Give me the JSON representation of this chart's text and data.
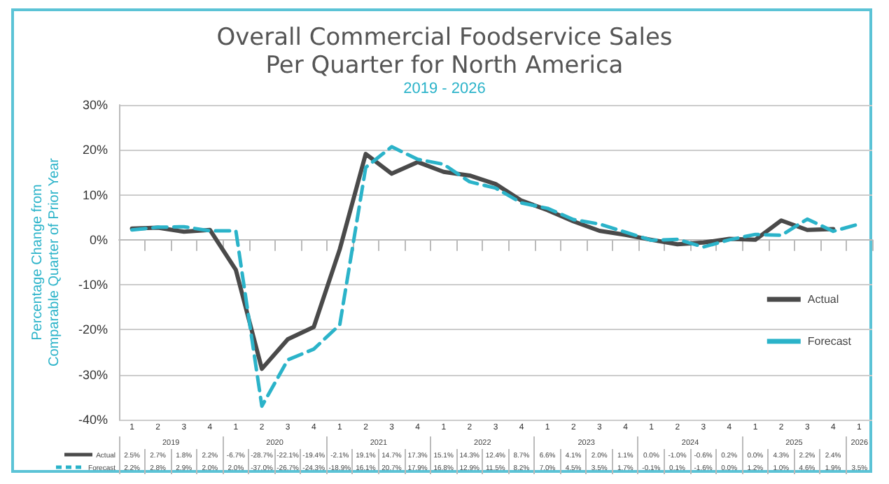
{
  "chart_data": {
    "type": "line",
    "title": "Overall Commercial Foodservice Sales\nPer Quarter for North America",
    "subtitle": "2019 - 2026",
    "ylabel": "Percentage Change from\nComparable Quarter of Prior Year",
    "categories": [
      "1",
      "2",
      "3",
      "4",
      "1",
      "2",
      "3",
      "4",
      "1",
      "2",
      "3",
      "4",
      "1",
      "2",
      "3",
      "4",
      "1",
      "2",
      "3",
      "4",
      "1",
      "2",
      "3",
      "4",
      "1",
      "2",
      "3",
      "4",
      "1"
    ],
    "annotations": [
      "2019",
      "2020",
      "2021",
      "2022",
      "2023",
      "2024",
      "2025",
      "2026"
    ],
    "series": [
      {
        "name": "Actual",
        "color": "#4a4a4a",
        "line_style": "solid",
        "values": [
          2.5,
          2.7,
          1.8,
          2.2,
          -6.7,
          -28.7,
          -22.1,
          -19.4,
          -2.1,
          19.1,
          14.7,
          17.3,
          15.1,
          14.3,
          12.4,
          8.7,
          6.6,
          4.1,
          2.0,
          1.1,
          0.0,
          -1.0,
          -0.6,
          0.2,
          0.0,
          4.3,
          2.2,
          2.4,
          null
        ],
        "value_labels": [
          "2.5%",
          "2.7%",
          "1.8%",
          "2.2%",
          "-6.7%",
          "-28.7%",
          "-22.1%",
          "-19.4%",
          "-2.1%",
          "19.1%",
          "14.7%",
          "17.3%",
          "15.1%",
          "14.3%",
          "12.4%",
          "8.7%",
          "6.6%",
          "4.1%",
          "2.0%",
          "1.1%",
          "0.0%",
          "-1.0%",
          "-0.6%",
          "0.2%",
          "0.0%",
          "4.3%",
          "2.2%",
          "2.4%",
          null
        ]
      },
      {
        "name": "Forecast",
        "color": "#2bb3c9",
        "line_style": "dashed",
        "values": [
          2.2,
          2.8,
          2.9,
          2.0,
          2.0,
          -37.0,
          -26.7,
          -24.3,
          -18.9,
          16.1,
          20.7,
          17.9,
          16.8,
          12.9,
          11.5,
          8.2,
          7.0,
          4.5,
          3.5,
          1.7,
          -0.1,
          0.1,
          -1.6,
          0.0,
          1.2,
          1.0,
          4.6,
          1.9,
          3.5
        ],
        "value_labels": [
          "2.2%",
          "2.8%",
          "2.9%",
          "2.0%",
          "2.0%",
          "-37.0%",
          "-26.7%",
          "-24.3%",
          "-18.9%",
          "16.1%",
          "20.7%",
          "17.9%",
          "16.8%",
          "12.9%",
          "11.5%",
          "8.2%",
          "7.0%",
          "4.5%",
          "3.5%",
          "1.7%",
          "-0.1%",
          "0.1%",
          "-1.6%",
          "0.0%",
          "1.2%",
          "1.0%",
          "4.6%",
          "1.9%",
          "3.5%"
        ]
      }
    ],
    "ylim": [
      -40,
      30
    ],
    "yticks": [
      {
        "value": -40,
        "label": "-40%"
      },
      {
        "value": -30,
        "label": "-30%"
      },
      {
        "value": -20,
        "label": "-20%"
      },
      {
        "value": -10,
        "label": "-10%"
      },
      {
        "value": 0,
        "label": "0%"
      },
      {
        "value": 10,
        "label": "10%"
      },
      {
        "value": 20,
        "label": "20%"
      },
      {
        "value": 30,
        "label": "30%"
      }
    ],
    "grid": "y",
    "legend": "right",
    "marker": "none"
  }
}
